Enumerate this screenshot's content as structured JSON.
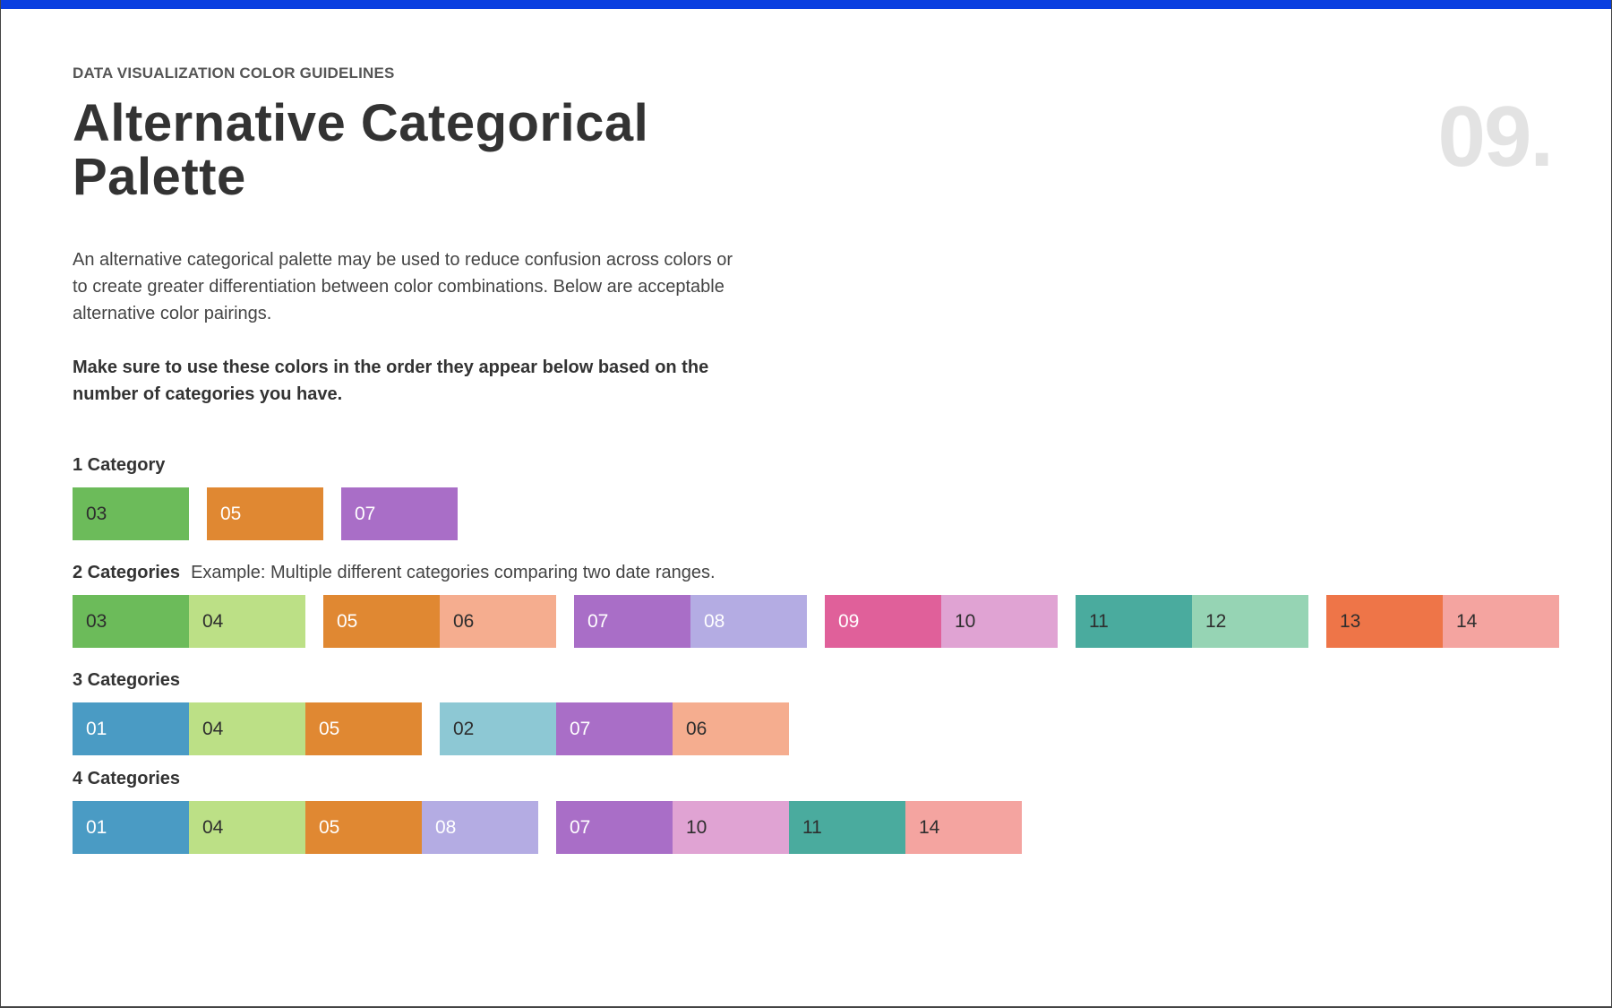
{
  "header": {
    "eyebrow": "DATA VISUALIZATION COLOR GUIDELINES",
    "title": "Alternative Categorical Palette",
    "page_number": "09."
  },
  "intro": {
    "paragraph": "An alternative categorical palette may be used to reduce confusion across colors or to create greater differentiation between color combinations.  Below are acceptable alternative color pairings.",
    "note": "Make sure to use these colors in the order they appear below based on the number of categories you have."
  },
  "groups": [
    {
      "label": "1 Category",
      "sets": [
        [
          {
            "label": "03",
            "color": "#6cbb5a",
            "text_color": "#2e2e2e"
          }
        ],
        [
          {
            "label": "05",
            "color": "#e08832",
            "text_color": "#ffffff"
          }
        ],
        [
          {
            "label": "07",
            "color": "#a96ec7",
            "text_color": "#ffffff"
          }
        ]
      ]
    },
    {
      "label": "2 Categories",
      "note": "Example: Multiple different categories comparing two date ranges.",
      "sets": [
        [
          {
            "label": "03",
            "color": "#6cbb5a",
            "text_color": "#2e2e2e"
          },
          {
            "label": "04",
            "color": "#bce086",
            "text_color": "#2e2e2e"
          }
        ],
        [
          {
            "label": "05",
            "color": "#e08832",
            "text_color": "#ffffff"
          },
          {
            "label": "06",
            "color": "#f5ad8f",
            "text_color": "#2e2e2e"
          }
        ],
        [
          {
            "label": "07",
            "color": "#a96ec7",
            "text_color": "#ffffff"
          },
          {
            "label": "08",
            "color": "#b4ace3",
            "text_color": "#ffffff"
          }
        ],
        [
          {
            "label": "09",
            "color": "#e0609a",
            "text_color": "#ffffff"
          },
          {
            "label": "10",
            "color": "#e0a3d3",
            "text_color": "#2e2e2e"
          }
        ],
        [
          {
            "label": "11",
            "color": "#4aab9e",
            "text_color": "#2e2e2e"
          },
          {
            "label": "12",
            "color": "#96d4b4",
            "text_color": "#2e2e2e"
          }
        ],
        [
          {
            "label": "13",
            "color": "#ee7548",
            "text_color": "#2e2e2e"
          },
          {
            "label": "14",
            "color": "#f4a4a0",
            "text_color": "#2e2e2e"
          }
        ]
      ]
    },
    {
      "label": "3 Categories",
      "sets": [
        [
          {
            "label": "01",
            "color": "#4a9bc4",
            "text_color": "#ffffff"
          },
          {
            "label": "04",
            "color": "#bce086",
            "text_color": "#2e2e2e"
          },
          {
            "label": "05",
            "color": "#e08832",
            "text_color": "#ffffff"
          }
        ],
        [
          {
            "label": "02",
            "color": "#8dc8d4",
            "text_color": "#2e2e2e"
          },
          {
            "label": "07",
            "color": "#a96ec7",
            "text_color": "#ffffff"
          },
          {
            "label": "06",
            "color": "#f5ad8f",
            "text_color": "#2e2e2e"
          }
        ]
      ]
    },
    {
      "label": "4 Categories",
      "sets": [
        [
          {
            "label": "01",
            "color": "#4a9bc4",
            "text_color": "#ffffff"
          },
          {
            "label": "04",
            "color": "#bce086",
            "text_color": "#2e2e2e"
          },
          {
            "label": "05",
            "color": "#e08832",
            "text_color": "#ffffff"
          },
          {
            "label": "08",
            "color": "#b4ace3",
            "text_color": "#ffffff"
          }
        ],
        [
          {
            "label": "07",
            "color": "#a96ec7",
            "text_color": "#ffffff"
          },
          {
            "label": "10",
            "color": "#e0a3d3",
            "text_color": "#2e2e2e"
          },
          {
            "label": "11",
            "color": "#4aab9e",
            "text_color": "#2e2e2e"
          },
          {
            "label": "14",
            "color": "#f4a4a0",
            "text_color": "#2e2e2e"
          }
        ]
      ]
    }
  ]
}
